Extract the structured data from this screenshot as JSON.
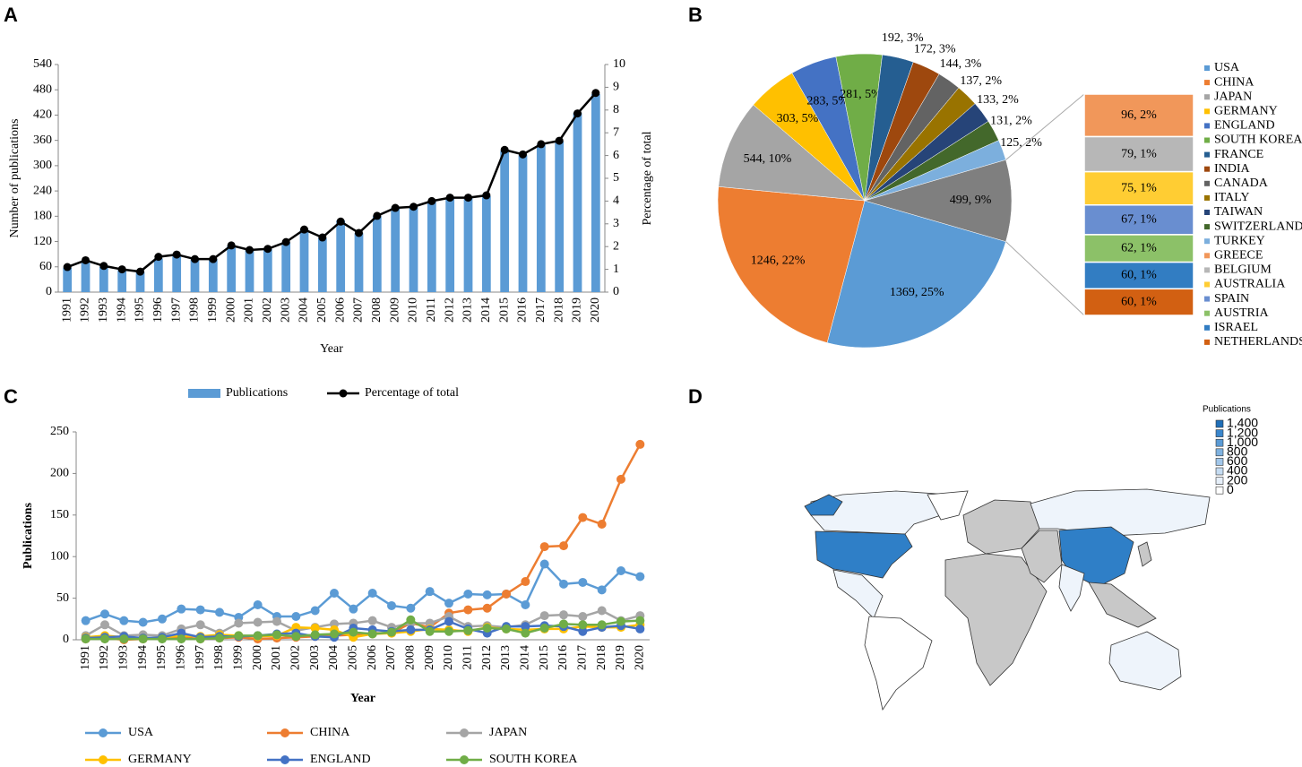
{
  "panels": [
    "A",
    "B",
    "C",
    "D"
  ],
  "chart_data": [
    {
      "type": "bar",
      "xlabel": "Year",
      "ylabel": "Number of publications",
      "y2label": "Percentage of total",
      "categories": [
        "1991",
        "1992",
        "1993",
        "1994",
        "1995",
        "1996",
        "1997",
        "1998",
        "1999",
        "2000",
        "2001",
        "2002",
        "2003",
        "2004",
        "2005",
        "2006",
        "2007",
        "2008",
        "2009",
        "2010",
        "2011",
        "2012",
        "2013",
        "2014",
        "2015",
        "2016",
        "2017",
        "2018",
        "2019",
        "2020"
      ],
      "series": [
        {
          "name": "Publications",
          "color": "#5b9bd5",
          "mark": "bar",
          "values": [
            58,
            75,
            60,
            52,
            48,
            80,
            88,
            77,
            78,
            110,
            100,
            102,
            118,
            148,
            128,
            170,
            140,
            180,
            200,
            202,
            215,
            225,
            225,
            228,
            335,
            325,
            350,
            358,
            425,
            470
          ]
        },
        {
          "name": "Percentage of total",
          "color": "#000000",
          "mark": "line",
          "axis": "y2",
          "values": [
            1.1,
            1.4,
            1.15,
            1.0,
            0.9,
            1.55,
            1.65,
            1.45,
            1.45,
            2.05,
            1.85,
            1.9,
            2.2,
            2.75,
            2.4,
            3.1,
            2.6,
            3.35,
            3.7,
            3.75,
            4.0,
            4.15,
            4.15,
            4.25,
            6.25,
            6.05,
            6.5,
            6.65,
            7.85,
            8.75
          ]
        }
      ],
      "ylim": [
        0,
        540
      ],
      "yticks": [
        0,
        60,
        120,
        180,
        240,
        300,
        360,
        420,
        480,
        540
      ],
      "y2lim": [
        0,
        10
      ],
      "y2ticks": [
        0,
        1,
        2,
        3,
        4,
        5,
        6,
        7,
        8,
        9,
        10
      ]
    },
    {
      "type": "pie",
      "categories": [
        "USA",
        "CHINA",
        "JAPAN",
        "GERMANY",
        "ENGLAND",
        "SOUTH KOREA",
        "FRANCE",
        "INDIA",
        "CANADA",
        "ITALY",
        "TAIWAN",
        "SWITZERLAND",
        "TURKEY",
        null
      ],
      "values": [
        1369,
        1246,
        544,
        303,
        283,
        281,
        192,
        172,
        144,
        137,
        133,
        131,
        125,
        499
      ],
      "value_labels": [
        "1369, 25%",
        "1246, 22%",
        "544, 10%",
        "303, 5%",
        "283, 5%",
        "281, 5%",
        "192, 3%",
        "172, 3%",
        "144, 3%",
        "137, 2%",
        "133, 2%",
        "131, 2%",
        "125, 2%",
        "499, 9%"
      ],
      "colors": [
        "#5b9bd5",
        "#ed7d31",
        "#a5a5a5",
        "#ffc000",
        "#4472c4",
        "#70ad47",
        "#255e91",
        "#9e480e",
        "#636363",
        "#997300",
        "#264478",
        "#43682b",
        "#7cafdd",
        "#7f7f7f"
      ]
    },
    {
      "type": "stacked-bar",
      "categories": [
        "GREECE",
        "BELGIUM",
        "AUSTRALIA",
        "SPAIN",
        "AUSTRIA",
        "ISRAEL",
        "NETHERLANDS"
      ],
      "values": [
        96,
        79,
        75,
        67,
        62,
        60,
        60
      ],
      "value_labels": [
        "96, 2%",
        "79, 1%",
        "75, 1%",
        "67, 1%",
        "62, 1%",
        "60, 1%",
        "60, 1%"
      ],
      "colors": [
        "#f1975a",
        "#b7b7b7",
        "#ffcd33",
        "#698ed0",
        "#8cc168",
        "#327dc2",
        "#d26012"
      ]
    },
    {
      "type": "line",
      "xlabel": "Year",
      "ylabel": "Publications",
      "categories": [
        "1991",
        "1992",
        "1993",
        "1994",
        "1995",
        "1996",
        "1997",
        "1998",
        "1999",
        "2000",
        "2001",
        "2002",
        "2003",
        "2004",
        "2005",
        "2006",
        "2007",
        "2008",
        "2009",
        "2010",
        "2011",
        "2012",
        "2013",
        "2014",
        "2015",
        "2016",
        "2017",
        "2018",
        "2019",
        "2020"
      ],
      "series": [
        {
          "name": "USA",
          "color": "#5b9bd5",
          "values": [
            23,
            31,
            23,
            21,
            25,
            37,
            36,
            33,
            27,
            42,
            28,
            28,
            35,
            56,
            37,
            56,
            41,
            38,
            58,
            44,
            55,
            54,
            55,
            42,
            91,
            67,
            69,
            60,
            83,
            76
          ]
        },
        {
          "name": "CHINA",
          "color": "#ed7d31",
          "values": [
            1,
            2,
            0,
            1,
            2,
            3,
            1,
            2,
            3,
            1,
            2,
            3,
            4,
            5,
            6,
            8,
            8,
            20,
            15,
            32,
            36,
            38,
            55,
            70,
            112,
            113,
            147,
            139,
            193,
            235
          ]
        },
        {
          "name": "JAPAN",
          "color": "#a5a5a5",
          "values": [
            5,
            18,
            5,
            6,
            5,
            13,
            18,
            8,
            20,
            21,
            22,
            11,
            15,
            19,
            20,
            23,
            15,
            20,
            20,
            28,
            16,
            17,
            15,
            18,
            29,
            30,
            28,
            35,
            23,
            29
          ]
        },
        {
          "name": "GERMANY",
          "color": "#ffc000",
          "values": [
            3,
            5,
            3,
            2,
            3,
            5,
            4,
            6,
            5,
            4,
            5,
            15,
            14,
            12,
            3,
            7,
            8,
            10,
            13,
            12,
            10,
            15,
            13,
            12,
            13,
            13,
            16,
            15,
            15,
            18
          ]
        },
        {
          "name": "ENGLAND",
          "color": "#4472c4",
          "values": [
            2,
            3,
            4,
            2,
            3,
            8,
            3,
            4,
            4,
            5,
            7,
            8,
            4,
            3,
            14,
            12,
            10,
            12,
            12,
            22,
            13,
            8,
            16,
            16,
            17,
            16,
            10,
            15,
            17,
            13
          ]
        },
        {
          "name": "SOUTH KOREA",
          "color": "#70ad47",
          "values": [
            1,
            1,
            1,
            1,
            1,
            1,
            1,
            2,
            5,
            5,
            6,
            4,
            6,
            7,
            9,
            7,
            9,
            24,
            10,
            10,
            11,
            14,
            13,
            8,
            14,
            19,
            18,
            18,
            22,
            23
          ]
        }
      ],
      "ylim": [
        0,
        250
      ],
      "yticks": [
        0,
        50,
        100,
        150,
        200,
        250
      ]
    }
  ],
  "map": {
    "legend_title": "Publications",
    "legend_ticks": [
      {
        "value": 1400,
        "label": "1,400"
      },
      {
        "value": 1200,
        "label": "1,200"
      },
      {
        "value": 1000,
        "label": "1,000"
      },
      800,
      600,
      400,
      200,
      0
    ],
    "legend_colors": [
      "#1f6fb8",
      "#3a86cc",
      "#5b9bd5",
      "#7fb2e0",
      "#a2c7ea",
      "#c5dcf2",
      "#e6eff9",
      "#ffffff"
    ]
  }
}
